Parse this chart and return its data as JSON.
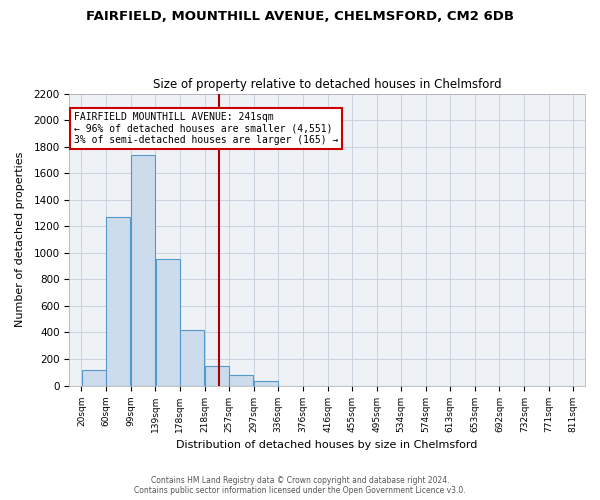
{
  "title1": "FAIRFIELD, MOUNTHILL AVENUE, CHELMSFORD, CM2 6DB",
  "title2": "Size of property relative to detached houses in Chelmsford",
  "xlabel": "Distribution of detached houses by size in Chelmsford",
  "ylabel": "Number of detached properties",
  "footer1": "Contains HM Land Registry data © Crown copyright and database right 2024.",
  "footer2": "Contains public sector information licensed under the Open Government Licence v3.0.",
  "bar_left_edges": [
    20,
    60,
    99,
    139,
    178,
    218,
    257,
    297,
    336,
    376,
    416,
    455,
    495,
    534,
    574,
    613,
    653,
    692,
    732,
    771
  ],
  "bar_heights": [
    120,
    1270,
    1740,
    950,
    415,
    150,
    80,
    35,
    0,
    0,
    0,
    0,
    0,
    0,
    0,
    0,
    0,
    0,
    0,
    0
  ],
  "bin_width": 39,
  "bar_color": "#ccdcec",
  "bar_edge_color": "#5599cc",
  "x_tick_labels": [
    "20sqm",
    "60sqm",
    "99sqm",
    "139sqm",
    "178sqm",
    "218sqm",
    "257sqm",
    "297sqm",
    "336sqm",
    "376sqm",
    "416sqm",
    "455sqm",
    "495sqm",
    "534sqm",
    "574sqm",
    "613sqm",
    "653sqm",
    "692sqm",
    "732sqm",
    "771sqm",
    "811sqm"
  ],
  "ylim": [
    0,
    2200
  ],
  "yticks": [
    0,
    200,
    400,
    600,
    800,
    1000,
    1200,
    1400,
    1600,
    1800,
    2000,
    2200
  ],
  "property_line_x": 241,
  "annotation_text1": "FAIRFIELD MOUNTHILL AVENUE: 241sqm",
  "annotation_text2": "← 96% of detached houses are smaller (4,551)",
  "annotation_text3": "3% of semi-detached houses are larger (165) →",
  "annotation_box_color": "white",
  "annotation_box_edge": "#cc0000",
  "property_line_color": "#aa0000",
  "background_color": "#ffffff",
  "plot_bg_color": "#eef2f7",
  "grid_color": "#c8d4e0"
}
